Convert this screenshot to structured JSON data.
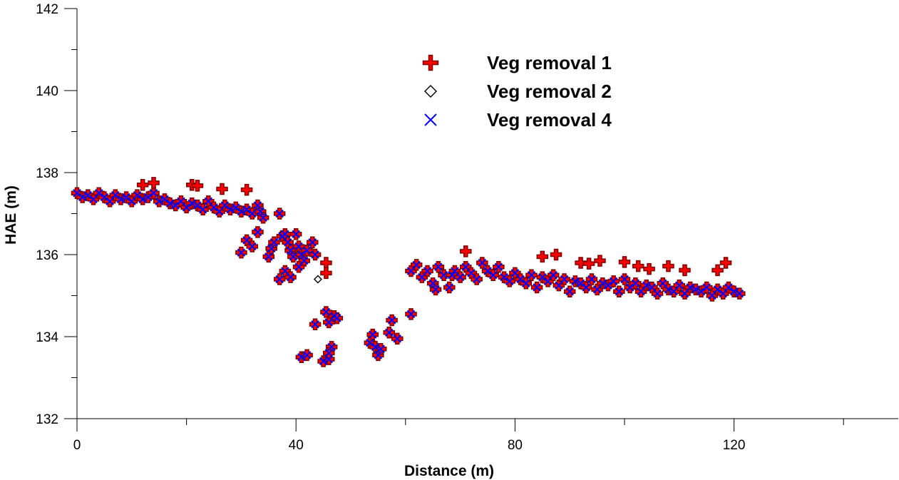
{
  "chart_data": {
    "type": "scatter",
    "xlabel": "Distance (m)",
    "ylabel": "HAE (m)",
    "xlim": [
      0,
      150
    ],
    "ylim": [
      132,
      142
    ],
    "xticks": [
      0,
      40,
      80,
      120
    ],
    "xminorticks": [
      20,
      60,
      100,
      140
    ],
    "yticks": [
      132,
      134,
      136,
      138,
      140,
      142
    ],
    "yminorticks": [
      133,
      135,
      137,
      139,
      141
    ],
    "grid": false,
    "legend_position": "top-center",
    "colors": {
      "series1": "#ff0000",
      "series1_outline": "#7a0000",
      "series2": "#000000",
      "series3": "#0000ff"
    },
    "series": [
      {
        "name": "Veg removal 1",
        "marker": "plus",
        "points": [
          [
            12,
            137.7
          ],
          [
            14,
            137.75
          ],
          [
            21,
            137.7
          ],
          [
            22,
            137.68
          ],
          [
            26.5,
            137.6
          ],
          [
            31,
            137.58
          ],
          [
            45.5,
            135.8
          ],
          [
            45.5,
            135.55
          ],
          [
            71,
            136.08
          ],
          [
            85,
            135.95
          ],
          [
            87.5,
            136
          ],
          [
            92,
            135.8
          ],
          [
            93.5,
            135.78
          ],
          [
            95.5,
            135.85
          ],
          [
            100,
            135.82
          ],
          [
            102.5,
            135.72
          ],
          [
            104.5,
            135.65
          ],
          [
            108,
            135.72
          ],
          [
            111,
            135.62
          ],
          [
            117,
            135.62
          ],
          [
            118.5,
            135.8
          ]
        ]
      },
      {
        "name": "Veg removal 2",
        "marker": "diamond",
        "points": [
          [
            44,
            135.4
          ]
        ]
      },
      {
        "name": "Veg removal 4",
        "marker": "x",
        "points": [
          [
            0,
            137.5
          ],
          [
            1,
            137.4
          ],
          [
            2,
            137.45
          ],
          [
            3,
            137.35
          ],
          [
            4,
            137.5
          ],
          [
            5,
            137.4
          ],
          [
            6,
            137.3
          ],
          [
            7,
            137.45
          ],
          [
            8,
            137.35
          ],
          [
            9,
            137.4
          ],
          [
            10,
            137.3
          ],
          [
            11,
            137.45
          ],
          [
            12,
            137.35
          ],
          [
            13,
            137.4
          ],
          [
            14,
            137.5
          ],
          [
            15,
            137.3
          ],
          [
            16,
            137.35
          ],
          [
            17,
            137.25
          ],
          [
            18,
            137.2
          ],
          [
            19,
            137.3
          ],
          [
            20,
            137.15
          ],
          [
            21,
            137.25
          ],
          [
            22,
            137.2
          ],
          [
            23,
            137.1
          ],
          [
            24,
            137.3
          ],
          [
            25,
            137.15
          ],
          [
            26,
            137.05
          ],
          [
            27,
            137.2
          ],
          [
            28,
            137.1
          ],
          [
            29,
            137.15
          ],
          [
            30,
            137.05
          ],
          [
            31,
            137.1
          ],
          [
            32,
            137.0
          ],
          [
            33,
            137.2
          ],
          [
            33.5,
            137.05
          ],
          [
            34,
            136.9
          ],
          [
            33,
            136.55
          ],
          [
            31,
            136.35
          ],
          [
            30,
            136.05
          ],
          [
            32,
            136.2
          ],
          [
            35,
            135.95
          ],
          [
            35.5,
            136.15
          ],
          [
            36,
            136.3
          ],
          [
            37,
            137.0
          ],
          [
            37.5,
            136.45
          ],
          [
            38,
            136.5
          ],
          [
            38.5,
            136.3
          ],
          [
            39,
            136.1
          ],
          [
            39.5,
            135.95
          ],
          [
            40,
            136.5
          ],
          [
            40.5,
            136.2
          ],
          [
            41,
            136.0
          ],
          [
            41.5,
            135.85
          ],
          [
            42,
            136.1
          ],
          [
            43,
            136.3
          ],
          [
            43.5,
            136.0
          ],
          [
            37,
            135.4
          ],
          [
            38,
            135.6
          ],
          [
            39,
            135.45
          ],
          [
            40.5,
            135.7
          ],
          [
            41,
            133.5
          ],
          [
            42,
            133.55
          ],
          [
            43.5,
            134.3
          ],
          [
            45,
            133.4
          ],
          [
            46,
            133.45
          ],
          [
            45.5,
            134.6
          ],
          [
            46,
            134.35
          ],
          [
            47,
            134.5
          ],
          [
            47.5,
            134.45
          ],
          [
            46.5,
            133.75
          ],
          [
            46,
            133.6
          ],
          [
            53.5,
            133.85
          ],
          [
            54,
            134.05
          ],
          [
            54.5,
            133.75
          ],
          [
            55,
            133.55
          ],
          [
            55.5,
            133.7
          ],
          [
            57,
            134.1
          ],
          [
            57.5,
            134.4
          ],
          [
            58.5,
            133.95
          ],
          [
            61,
            134.55
          ],
          [
            61,
            135.6
          ],
          [
            62,
            135.75
          ],
          [
            63,
            135.45
          ],
          [
            64,
            135.6
          ],
          [
            65,
            135.3
          ],
          [
            65.5,
            135.15
          ],
          [
            66,
            135.7
          ],
          [
            67,
            135.5
          ],
          [
            68,
            135.2
          ],
          [
            68.5,
            135.5
          ],
          [
            69,
            135.6
          ],
          [
            70,
            135.45
          ],
          [
            71,
            135.7
          ],
          [
            72,
            135.55
          ],
          [
            73,
            135.4
          ],
          [
            74,
            135.8
          ],
          [
            75,
            135.6
          ],
          [
            76,
            135.5
          ],
          [
            77,
            135.7
          ],
          [
            78,
            135.45
          ],
          [
            79,
            135.35
          ],
          [
            80,
            135.55
          ],
          [
            81,
            135.4
          ],
          [
            82,
            135.3
          ],
          [
            83,
            135.5
          ],
          [
            84,
            135.2
          ],
          [
            85,
            135.45
          ],
          [
            86,
            135.35
          ],
          [
            87,
            135.5
          ],
          [
            88,
            135.25
          ],
          [
            89,
            135.4
          ],
          [
            90,
            135.1
          ],
          [
            91,
            135.35
          ],
          [
            92,
            135.3
          ],
          [
            93,
            135.2
          ],
          [
            94,
            135.4
          ],
          [
            95,
            135.15
          ],
          [
            96,
            135.3
          ],
          [
            97,
            135.25
          ],
          [
            98,
            135.35
          ],
          [
            99,
            135.1
          ],
          [
            100,
            135.4
          ],
          [
            101,
            135.2
          ],
          [
            102,
            135.3
          ],
          [
            103,
            135.1
          ],
          [
            104,
            135.25
          ],
          [
            105,
            135.2
          ],
          [
            106,
            135.05
          ],
          [
            107,
            135.3
          ],
          [
            108,
            135.15
          ],
          [
            109,
            135.1
          ],
          [
            110,
            135.25
          ],
          [
            111,
            135.05
          ],
          [
            112,
            135.2
          ],
          [
            113,
            135.15
          ],
          [
            114,
            135.1
          ],
          [
            115,
            135.2
          ],
          [
            116,
            135.0
          ],
          [
            117,
            135.15
          ],
          [
            118,
            135.05
          ],
          [
            119,
            135.2
          ],
          [
            120,
            135.1
          ],
          [
            121,
            135.05
          ]
        ]
      }
    ]
  }
}
